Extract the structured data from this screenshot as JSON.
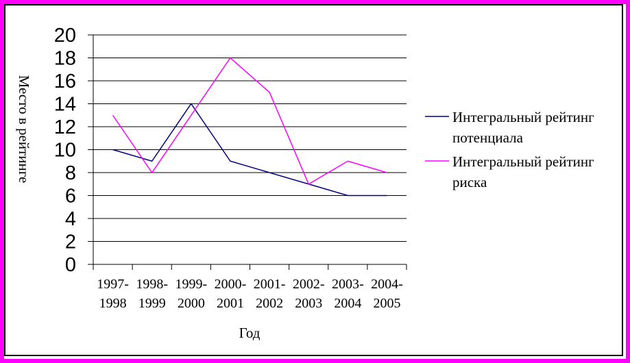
{
  "chart_data": {
    "type": "line",
    "title": "",
    "xlabel": "Год",
    "ylabel": "Место в рейтинге",
    "ylim": [
      0,
      20
    ],
    "ytick_step": 2,
    "categories": [
      [
        "1997-",
        "1998"
      ],
      [
        "1998-",
        "1999"
      ],
      [
        "1999-",
        "2000"
      ],
      [
        "2000-",
        "2001"
      ],
      [
        "2001-",
        "2002"
      ],
      [
        "2002-",
        "2003"
      ],
      [
        "2003-",
        "2004"
      ],
      [
        "2004-",
        "2005"
      ]
    ],
    "grid": true,
    "legend_position": "right",
    "series": [
      {
        "name": "Интегральный рейтинг потенциала",
        "legend_lines": [
          "Интегральный рейтинг",
          "потенциала"
        ],
        "color": "#000080",
        "values": [
          10,
          9,
          14,
          9,
          8,
          7,
          6,
          6
        ]
      },
      {
        "name": "Интегральный рейтинг риска",
        "legend_lines": [
          "Интегральный рейтинг",
          "риска"
        ],
        "color": "#ff00ff",
        "values": [
          13,
          8,
          13,
          18,
          15,
          7,
          9,
          8
        ]
      }
    ]
  },
  "frame_color": "#ff00ff"
}
